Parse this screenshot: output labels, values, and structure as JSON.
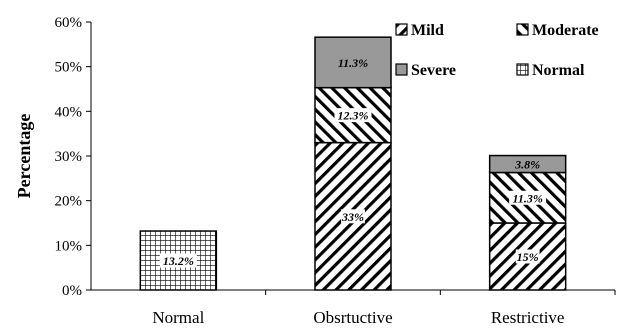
{
  "chart_data": {
    "type": "bar",
    "stacked": true,
    "ylabel": "Percentage",
    "ylim": [
      0,
      60
    ],
    "y_ticks": [
      "0%",
      "10%",
      "20%",
      "30%",
      "40%",
      "50%",
      "60%"
    ],
    "categories": [
      "Normal",
      "Obsrtuctive",
      "Restrictive"
    ],
    "series": [
      {
        "name": "Normal",
        "values": [
          13.2,
          0,
          0
        ],
        "labels": [
          "13.2%",
          "",
          ""
        ],
        "fill": "grid"
      },
      {
        "name": "Mild",
        "values": [
          0,
          33,
          15
        ],
        "labels": [
          "",
          "33%",
          "15%"
        ],
        "fill": "diagonal-hatch"
      },
      {
        "name": "Moderate",
        "values": [
          0,
          12.3,
          11.3
        ],
        "labels": [
          "",
          "12.3%",
          "11.3%"
        ],
        "fill": "reverse-diagonal-hatch"
      },
      {
        "name": "Severe",
        "values": [
          0,
          11.3,
          3.8
        ],
        "labels": [
          "",
          "11.3%",
          "3.8%"
        ],
        "fill": "#999999"
      }
    ],
    "legend": {
      "placement": "top-right",
      "order": [
        "Mild",
        "Moderate",
        "Severe",
        "Normal"
      ]
    },
    "grid": false
  }
}
